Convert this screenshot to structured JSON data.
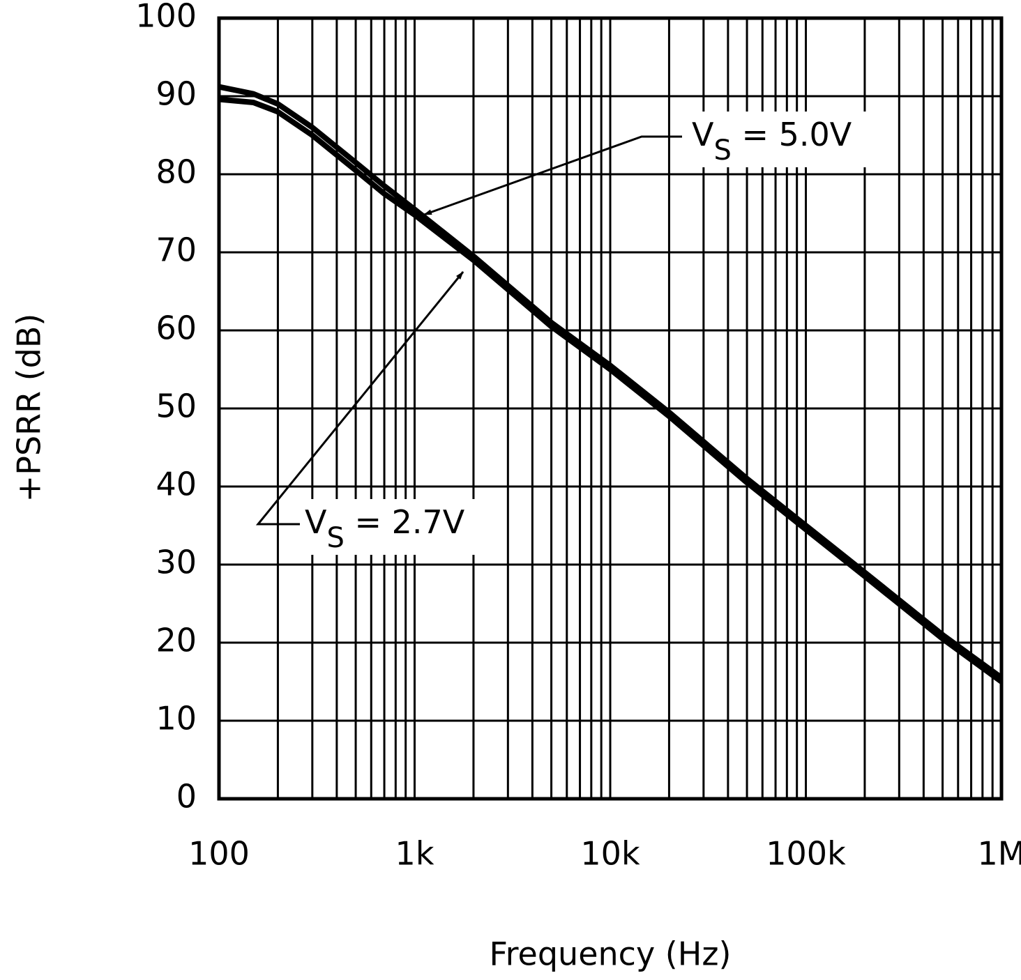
{
  "chart_data": {
    "type": "line",
    "x_label": "Frequency (Hz)",
    "y_label": "+PSRR (dB)",
    "log_x": true,
    "grid": true,
    "color": "#000000",
    "xlim": [
      100,
      1000000
    ],
    "ylim": [
      0,
      100
    ],
    "xticks": [
      100,
      {
        "value": 1000,
        "label": "1k"
      },
      {
        "value": 10000,
        "label": "10k"
      },
      {
        "value": 100000,
        "label": "100k"
      },
      {
        "value": 1000000,
        "label": "1M"
      }
    ],
    "xminorticks": [
      200,
      300,
      400,
      500,
      600,
      700,
      800,
      900,
      2000,
      3000,
      4000,
      5000,
      6000,
      7000,
      8000,
      9000,
      20000,
      30000,
      40000,
      50000,
      60000,
      70000,
      80000,
      90000,
      200000,
      300000,
      400000,
      500000,
      600000,
      700000,
      800000,
      900000
    ],
    "yticks": [
      0,
      10,
      20,
      30,
      40,
      50,
      60,
      70,
      80,
      90,
      100
    ],
    "x": [
      100,
      150,
      200,
      300,
      500,
      700,
      1000,
      2000,
      5000,
      10000,
      20000,
      50000,
      100000,
      200000,
      500000,
      1000000
    ],
    "series": [
      {
        "color": "#000000",
        "values": [
          91.2,
          90.3,
          89,
          86,
          81.5,
          78.5,
          75.5,
          69.5,
          61,
          55.5,
          49.5,
          41,
          35,
          29,
          21,
          15.5
        ]
      },
      {
        "color": "#000000",
        "values": [
          89.6,
          89.2,
          88,
          85,
          80.5,
          77.5,
          74.8,
          69,
          60.5,
          55,
          49,
          40.5,
          34.5,
          28.5,
          20.5,
          15
        ]
      }
    ],
    "annotations": [
      {
        "text": "V",
        "subscript": "S",
        "suffix": " = 5.0V"
      },
      {
        "text": "V",
        "subscript": "S",
        "suffix": " = 2.7V"
      }
    ]
  }
}
